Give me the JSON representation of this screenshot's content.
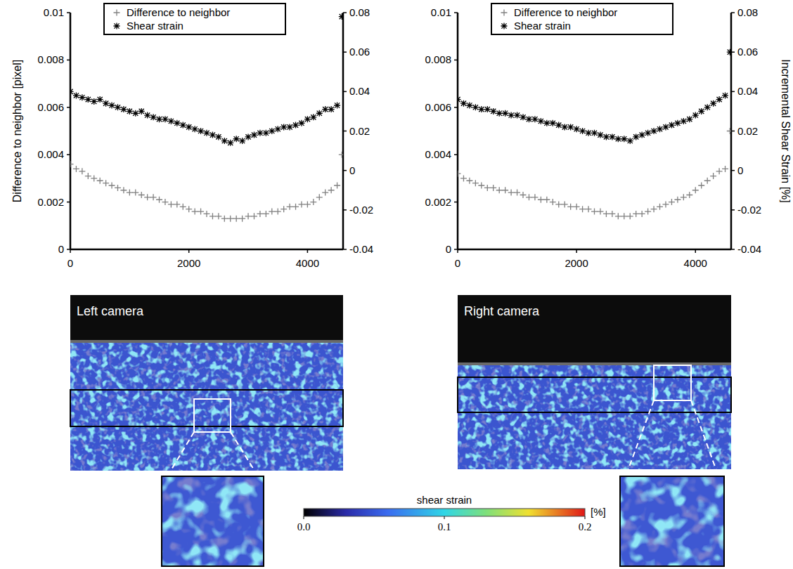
{
  "chart_data": [
    {
      "type": "scatter",
      "ylabel": "Difference to neighbor [pixel]",
      "legend": "top",
      "x": [
        0,
        100,
        200,
        300,
        400,
        500,
        600,
        700,
        800,
        900,
        1000,
        1100,
        1200,
        1300,
        1400,
        1500,
        1600,
        1700,
        1800,
        1900,
        2000,
        2100,
        2200,
        2300,
        2400,
        2500,
        2600,
        2700,
        2800,
        2900,
        3000,
        3100,
        3200,
        3300,
        3400,
        3500,
        3600,
        3700,
        3800,
        3900,
        4000,
        4100,
        4200,
        4300,
        4400,
        4500,
        4580
      ],
      "xlim": [
        0,
        4600
      ],
      "xticks": [
        0,
        2000,
        4000
      ],
      "ylim": [
        0,
        0.01
      ],
      "yticks": [
        0,
        0.002,
        0.004,
        0.006,
        0.008,
        0.01
      ],
      "y2lim": [
        -0.04,
        0.08
      ],
      "y2ticks": [
        -0.04,
        -0.02,
        0,
        0.02,
        0.04,
        0.06,
        0.08
      ],
      "series": [
        {
          "name": "Difference to neighbor",
          "color": "#808080",
          "marker": "plus",
          "values": [
            0.0036,
            0.0034,
            0.0033,
            0.0031,
            0.003,
            0.0029,
            0.0028,
            0.0027,
            0.0026,
            0.0025,
            0.0024,
            0.0024,
            0.0023,
            0.0022,
            0.0022,
            0.0021,
            0.002,
            0.0019,
            0.0019,
            0.0018,
            0.0017,
            0.0016,
            0.0016,
            0.0015,
            0.0014,
            0.0014,
            0.0013,
            0.0013,
            0.0013,
            0.0013,
            0.0014,
            0.0014,
            0.0015,
            0.0015,
            0.0016,
            0.0016,
            0.0017,
            0.0018,
            0.0018,
            0.0019,
            0.0019,
            0.002,
            0.0022,
            0.0024,
            0.0025,
            0.0027,
            0.004
          ]
        },
        {
          "name": "Shear strain",
          "color": "#000000",
          "marker": "asterisk",
          "axis": "y2",
          "values": [
            0.04,
            0.038,
            0.037,
            0.036,
            0.035,
            0.036,
            0.034,
            0.033,
            0.032,
            0.031,
            0.03,
            0.029,
            0.03,
            0.028,
            0.027,
            0.026,
            0.026,
            0.025,
            0.024,
            0.023,
            0.022,
            0.021,
            0.02,
            0.019,
            0.018,
            0.017,
            0.015,
            0.014,
            0.016,
            0.015,
            0.017,
            0.018,
            0.019,
            0.019,
            0.02,
            0.021,
            0.022,
            0.022,
            0.023,
            0.024,
            0.026,
            0.027,
            0.029,
            0.031,
            0.031,
            0.033,
            0.078
          ]
        }
      ]
    },
    {
      "type": "scatter",
      "y2label": "Incremental Shear Strain [%]",
      "legend": "top",
      "x": [
        0,
        100,
        200,
        300,
        400,
        500,
        600,
        700,
        800,
        900,
        1000,
        1100,
        1200,
        1300,
        1400,
        1500,
        1600,
        1700,
        1800,
        1900,
        2000,
        2100,
        2200,
        2300,
        2400,
        2500,
        2600,
        2700,
        2800,
        2900,
        3000,
        3100,
        3200,
        3300,
        3400,
        3500,
        3600,
        3700,
        3800,
        3900,
        4000,
        4100,
        4200,
        4300,
        4400,
        4500,
        4580
      ],
      "xlim": [
        0,
        4600
      ],
      "xticks": [
        0,
        2000,
        4000
      ],
      "ylim": [
        0,
        0.01
      ],
      "yticks": [
        0,
        0.002,
        0.004,
        0.006,
        0.008,
        0.01
      ],
      "y2lim": [
        -0.04,
        0.08
      ],
      "y2ticks": [
        -0.04,
        -0.02,
        0,
        0.02,
        0.04,
        0.06,
        0.08
      ],
      "series": [
        {
          "name": "Difference to neighbor",
          "color": "#808080",
          "marker": "plus",
          "values": [
            0.0032,
            0.003,
            0.0029,
            0.0028,
            0.0027,
            0.0026,
            0.0026,
            0.0025,
            0.0025,
            0.0024,
            0.0024,
            0.0023,
            0.0022,
            0.0022,
            0.0021,
            0.0021,
            0.002,
            0.0019,
            0.0019,
            0.0018,
            0.0018,
            0.0017,
            0.0017,
            0.0016,
            0.0016,
            0.0015,
            0.0015,
            0.0014,
            0.0014,
            0.0014,
            0.0015,
            0.0015,
            0.0016,
            0.0017,
            0.0018,
            0.0019,
            0.002,
            0.0021,
            0.0022,
            0.0023,
            0.0025,
            0.0027,
            0.0029,
            0.0031,
            0.0033,
            0.0034,
            0.005
          ]
        },
        {
          "name": "Shear strain",
          "color": "#000000",
          "marker": "asterisk",
          "axis": "y2",
          "values": [
            0.036,
            0.034,
            0.033,
            0.032,
            0.031,
            0.031,
            0.03,
            0.029,
            0.029,
            0.028,
            0.028,
            0.027,
            0.026,
            0.026,
            0.025,
            0.024,
            0.024,
            0.023,
            0.022,
            0.022,
            0.021,
            0.02,
            0.019,
            0.019,
            0.018,
            0.017,
            0.017,
            0.016,
            0.016,
            0.015,
            0.017,
            0.018,
            0.019,
            0.02,
            0.021,
            0.022,
            0.023,
            0.024,
            0.025,
            0.026,
            0.028,
            0.03,
            0.032,
            0.034,
            0.036,
            0.038,
            0.06
          ]
        }
      ]
    }
  ],
  "images": [
    {
      "label": "Left camera"
    },
    {
      "label": "Right camera"
    }
  ],
  "colorbar": {
    "title": "shear strain",
    "unit": "[%]",
    "range": [
      0,
      0.2
    ],
    "ticks": [
      {
        "value": 0,
        "label": "0.0"
      },
      0.1,
      {
        "value": 0.2,
        "label": "0.2"
      }
    ]
  }
}
